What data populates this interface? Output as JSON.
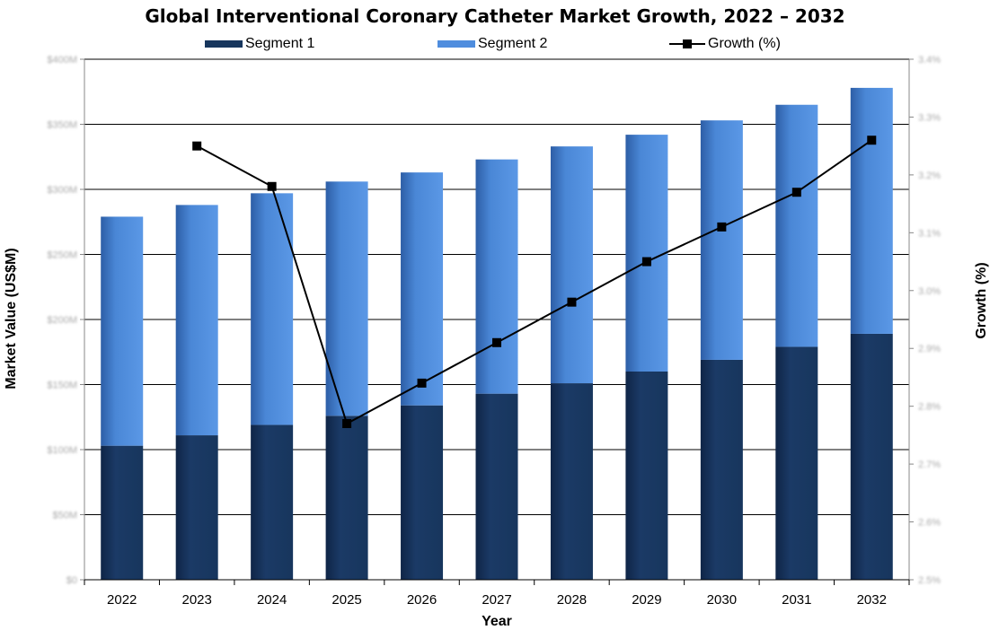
{
  "chart_data": {
    "type": "bar",
    "stacked": true,
    "title": "Global Interventional Coronary Catheter Market Growth, 2022 – 2032",
    "xlabel": "Year",
    "ylabel": "Market Value (US$M)",
    "y2label": "Growth (%)",
    "categories": [
      "2022",
      "2023",
      "2024",
      "2025",
      "2026",
      "2027",
      "2028",
      "2029",
      "2030",
      "2031",
      "2032"
    ],
    "series": [
      {
        "name": "Segment 1",
        "type": "bar",
        "color": "#17365d",
        "values": [
          103,
          111,
          119,
          126,
          134,
          143,
          151,
          160,
          169,
          179,
          189
        ]
      },
      {
        "name": "Segment 2",
        "type": "bar",
        "color": "#4f8dde",
        "values": [
          176,
          177,
          178,
          180,
          179,
          180,
          182,
          182,
          184,
          186,
          189
        ]
      },
      {
        "name": "Growth (%)",
        "type": "line",
        "axis": "right",
        "color": "#000000",
        "values": [
          null,
          3.25,
          3.18,
          2.77,
          2.84,
          2.91,
          2.98,
          3.05,
          3.11,
          3.17,
          3.26
        ]
      }
    ],
    "ylim": [
      0,
      400
    ],
    "y2lim": [
      2.5,
      3.4
    ],
    "y_tick_labels": [
      "$0",
      "$50M",
      "$100M",
      "$150M",
      "$200M",
      "$250M",
      "$300M",
      "$350M",
      "$400M"
    ],
    "y2_tick_labels": [
      "2.5%",
      "2.6%",
      "2.7%",
      "2.8%",
      "2.9%",
      "3.0%",
      "3.1%",
      "3.2%",
      "3.3%",
      "3.4%"
    ],
    "grid": true,
    "legend": "top"
  }
}
